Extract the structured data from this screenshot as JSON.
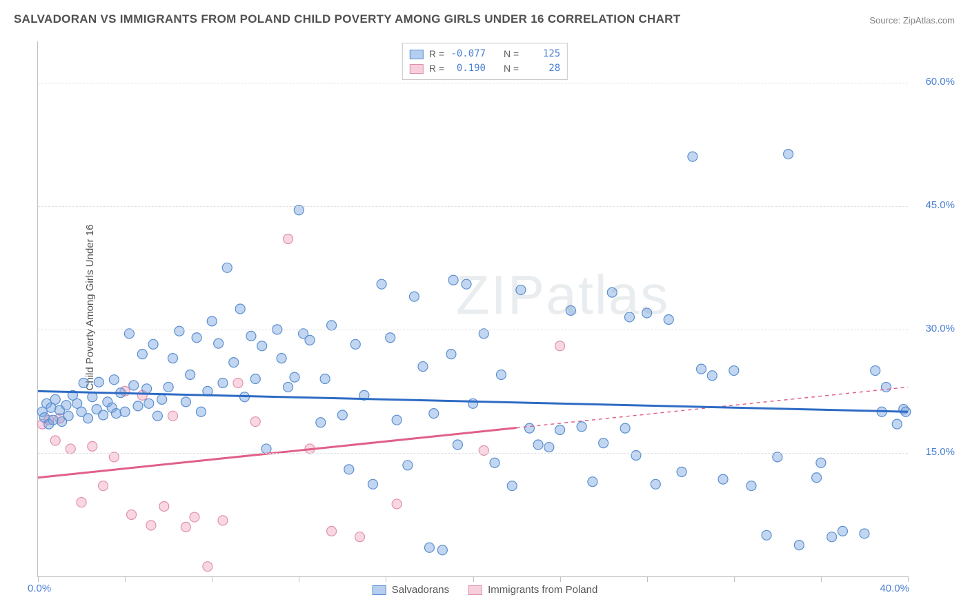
{
  "title": "SALVADORAN VS IMMIGRANTS FROM POLAND CHILD POVERTY AMONG GIRLS UNDER 16 CORRELATION CHART",
  "source_label": "Source:",
  "source_value": "ZipAtlas.com",
  "ylabel": "Child Poverty Among Girls Under 16",
  "watermark": "ZIPatlas",
  "chart": {
    "type": "scatter",
    "xlim": [
      0,
      40
    ],
    "ylim": [
      0,
      65
    ],
    "x_tick_labels": [
      "0.0%",
      "40.0%"
    ],
    "y_ticks": [
      15,
      30,
      45,
      60
    ],
    "y_tick_labels": [
      "15.0%",
      "30.0%",
      "45.0%",
      "60.0%"
    ],
    "x_minor_tick_positions": [
      0,
      4,
      8,
      12,
      16,
      20,
      24,
      28,
      32,
      36,
      40
    ],
    "background_color": "#ffffff",
    "grid_color": "#e0e0e0",
    "axis_color": "#c0c0c0",
    "marker_radius": 7,
    "marker_stroke_width": 1.2,
    "trend_line_width": 3
  },
  "legend_bottom": {
    "series1": "Salvadorans",
    "series2": "Immigrants from Poland"
  },
  "correlation_box": {
    "rows": [
      {
        "swatch": "blue",
        "r_label": "R =",
        "r_value": "-0.077",
        "n_label": "N =",
        "n_value": "125"
      },
      {
        "swatch": "pink",
        "r_label": "R =",
        "r_value": "0.190",
        "n_label": "N =",
        "n_value": "28"
      }
    ]
  },
  "series": {
    "salvadorans": {
      "color_fill": "rgba(120,165,225,0.45)",
      "color_stroke": "#5a8fd0",
      "trend": {
        "x0": 0,
        "y0": 22.5,
        "x1": 40,
        "y1": 20.0,
        "color": "#2d6bc4",
        "dash_from_x": null
      },
      "points": [
        [
          0.2,
          20
        ],
        [
          0.3,
          19.3
        ],
        [
          0.4,
          21
        ],
        [
          0.5,
          18.5
        ],
        [
          0.6,
          20.5
        ],
        [
          0.7,
          19
        ],
        [
          0.8,
          21.5
        ],
        [
          1.0,
          20.2
        ],
        [
          1.1,
          18.8
        ],
        [
          1.3,
          20.8
        ],
        [
          1.4,
          19.5
        ],
        [
          1.6,
          22
        ],
        [
          1.8,
          21
        ],
        [
          2.0,
          20
        ],
        [
          2.1,
          23.5
        ],
        [
          2.3,
          19.2
        ],
        [
          2.5,
          21.8
        ],
        [
          2.7,
          20.3
        ],
        [
          2.8,
          23.6
        ],
        [
          3.0,
          19.6
        ],
        [
          3.2,
          21.2
        ],
        [
          3.4,
          20.5
        ],
        [
          3.5,
          23.9
        ],
        [
          3.6,
          19.8
        ],
        [
          3.8,
          22.3
        ],
        [
          4.0,
          20
        ],
        [
          4.2,
          29.5
        ],
        [
          4.4,
          23.2
        ],
        [
          4.6,
          20.7
        ],
        [
          4.8,
          27
        ],
        [
          5.0,
          22.8
        ],
        [
          5.1,
          21
        ],
        [
          5.3,
          28.2
        ],
        [
          5.5,
          19.5
        ],
        [
          5.7,
          21.5
        ],
        [
          6.0,
          23
        ],
        [
          6.2,
          26.5
        ],
        [
          6.5,
          29.8
        ],
        [
          6.8,
          21.2
        ],
        [
          7.0,
          24.5
        ],
        [
          7.3,
          29
        ],
        [
          7.5,
          20
        ],
        [
          7.8,
          22.5
        ],
        [
          8.0,
          31
        ],
        [
          8.3,
          28.3
        ],
        [
          8.5,
          23.5
        ],
        [
          8.7,
          37.5
        ],
        [
          9.0,
          26
        ],
        [
          9.3,
          32.5
        ],
        [
          9.5,
          21.8
        ],
        [
          9.8,
          29.2
        ],
        [
          10.0,
          24
        ],
        [
          10.3,
          28
        ],
        [
          10.5,
          15.5
        ],
        [
          11.0,
          30
        ],
        [
          11.2,
          26.5
        ],
        [
          11.5,
          23
        ],
        [
          11.8,
          24.2
        ],
        [
          12.0,
          44.5
        ],
        [
          12.2,
          29.5
        ],
        [
          12.5,
          28.7
        ],
        [
          13.0,
          18.7
        ],
        [
          13.2,
          24
        ],
        [
          13.5,
          30.5
        ],
        [
          14.0,
          19.6
        ],
        [
          14.3,
          13
        ],
        [
          14.6,
          28.2
        ],
        [
          15.0,
          22
        ],
        [
          15.4,
          11.2
        ],
        [
          15.8,
          35.5
        ],
        [
          16.2,
          29
        ],
        [
          16.5,
          19
        ],
        [
          17.0,
          13.5
        ],
        [
          17.3,
          34
        ],
        [
          17.7,
          25.5
        ],
        [
          18.0,
          3.5
        ],
        [
          18.2,
          19.8
        ],
        [
          18.6,
          3.2
        ],
        [
          19.0,
          27
        ],
        [
          19.1,
          36
        ],
        [
          19.3,
          16
        ],
        [
          19.7,
          35.5
        ],
        [
          20.0,
          21
        ],
        [
          20.5,
          29.5
        ],
        [
          21.0,
          13.8
        ],
        [
          21.3,
          24.5
        ],
        [
          21.8,
          11
        ],
        [
          22.2,
          34.8
        ],
        [
          22.6,
          18
        ],
        [
          23.0,
          16
        ],
        [
          23.5,
          15.7
        ],
        [
          24.0,
          17.8
        ],
        [
          24.5,
          32.3
        ],
        [
          25.0,
          18.2
        ],
        [
          25.5,
          11.5
        ],
        [
          26.0,
          16.2
        ],
        [
          26.4,
          34.5
        ],
        [
          27.0,
          18
        ],
        [
          27.2,
          31.5
        ],
        [
          27.5,
          14.7
        ],
        [
          28.0,
          32
        ],
        [
          28.4,
          11.2
        ],
        [
          29.0,
          31.2
        ],
        [
          29.6,
          12.7
        ],
        [
          30.1,
          51
        ],
        [
          30.5,
          25.2
        ],
        [
          31.0,
          24.4
        ],
        [
          31.5,
          11.8
        ],
        [
          32.0,
          25
        ],
        [
          32.8,
          11
        ],
        [
          33.5,
          5
        ],
        [
          34.5,
          51.3
        ],
        [
          35.0,
          3.8
        ],
        [
          35.8,
          12
        ],
        [
          36.5,
          4.8
        ],
        [
          37.0,
          5.5
        ],
        [
          38.0,
          5.2
        ],
        [
          38.5,
          25
        ],
        [
          39.0,
          23
        ],
        [
          39.5,
          18.5
        ],
        [
          39.8,
          20.3
        ],
        [
          39.9,
          20.0
        ],
        [
          38.8,
          20
        ],
        [
          36.0,
          13.8
        ],
        [
          34.0,
          14.5
        ]
      ]
    },
    "poland": {
      "color_fill": "rgba(240,160,185,0.42)",
      "color_stroke": "#e090ae",
      "trend": {
        "x0": 0,
        "y0": 12.0,
        "x1": 40,
        "y1": 23.0,
        "color": "#e06088",
        "dash_from_x": 22
      },
      "points": [
        [
          0.2,
          18.5
        ],
        [
          0.5,
          19
        ],
        [
          0.8,
          16.5
        ],
        [
          1.0,
          19.2
        ],
        [
          1.5,
          15.5
        ],
        [
          2.0,
          9
        ],
        [
          2.5,
          15.8
        ],
        [
          3.0,
          11
        ],
        [
          3.5,
          14.5
        ],
        [
          4.0,
          22.5
        ],
        [
          4.3,
          7.5
        ],
        [
          4.8,
          22
        ],
        [
          5.2,
          6.2
        ],
        [
          5.8,
          8.5
        ],
        [
          6.2,
          19.5
        ],
        [
          6.8,
          6
        ],
        [
          7.2,
          7.2
        ],
        [
          7.8,
          1.2
        ],
        [
          8.5,
          6.8
        ],
        [
          9.2,
          23.5
        ],
        [
          10.0,
          18.8
        ],
        [
          11.5,
          41
        ],
        [
          12.5,
          15.5
        ],
        [
          13.5,
          5.5
        ],
        [
          14.8,
          4.8
        ],
        [
          16.5,
          8.8
        ],
        [
          20.5,
          15.3
        ],
        [
          24.0,
          28
        ]
      ]
    }
  }
}
